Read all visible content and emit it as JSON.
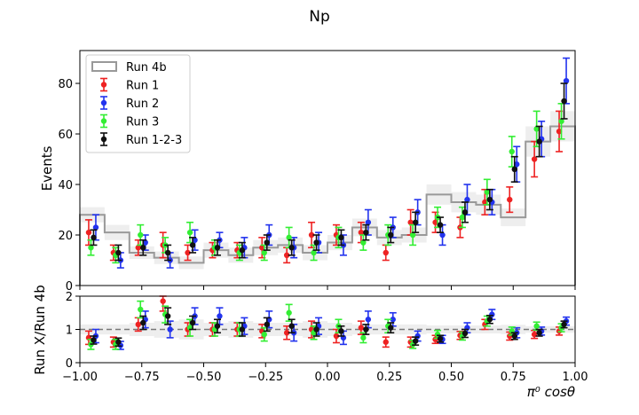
{
  "chart_data": [
    {
      "type": "line",
      "panel": "main",
      "title": "Np",
      "xlabel": "",
      "ylabel": "Events",
      "xlim": [
        -1.0,
        1.0
      ],
      "ylim": [
        0,
        93
      ],
      "x_ticks": [
        "−1.00",
        "−0.75",
        "−0.50",
        "−0.25",
        "0.00",
        "0.25",
        "0.50",
        "0.75",
        "1.00"
      ],
      "y_ticks": [
        "0",
        "20",
        "40",
        "60",
        "80"
      ],
      "legend": "top-left",
      "bin_centers": [
        -0.95,
        -0.85,
        -0.75,
        -0.65,
        -0.55,
        -0.45,
        -0.35,
        -0.25,
        -0.15,
        -0.05,
        0.05,
        0.15,
        0.25,
        0.35,
        0.45,
        0.55,
        0.65,
        0.75,
        0.85,
        0.95
      ],
      "reference": {
        "name": "Run 4b",
        "color": "#999999",
        "values": [
          28,
          21,
          13,
          11,
          9,
          14,
          12,
          15,
          16,
          13,
          17,
          23,
          19,
          20,
          36,
          33,
          32,
          27,
          57,
          63
        ],
        "band": [
          3,
          3,
          2.5,
          2.5,
          2.5,
          3,
          3,
          3,
          3,
          3,
          3,
          3.5,
          3,
          3,
          4,
          4,
          4,
          3.5,
          6,
          6
        ]
      },
      "series": [
        {
          "name": "Run 1",
          "color": "#ee2222",
          "values": [
            21,
            13,
            15,
            16,
            13,
            14,
            14,
            15,
            12,
            20,
            20,
            21,
            13,
            25,
            25,
            23,
            33,
            34,
            50,
            61
          ],
          "errors": [
            5,
            3,
            3,
            5,
            3,
            3,
            3,
            4,
            3,
            5,
            4,
            4,
            3,
            5,
            4,
            4,
            5,
            5,
            7,
            8
          ]
        },
        {
          "name": "Run 2",
          "color": "#2233ee",
          "values": [
            23,
            10,
            17,
            10,
            18,
            18,
            15,
            20,
            15,
            17,
            16,
            25,
            23,
            29,
            20,
            34,
            33,
            48,
            58,
            81
          ],
          "errors": [
            5,
            3,
            3,
            3,
            4,
            3,
            4,
            4,
            4,
            4,
            4,
            5,
            4,
            5,
            4,
            6,
            5,
            7,
            7,
            9
          ]
        },
        {
          "name": "Run 3",
          "color": "#33ee33",
          "values": [
            15,
            12,
            20,
            16,
            21,
            15,
            13,
            13,
            19,
            13,
            19,
            17,
            20,
            20,
            27,
            27,
            37,
            53,
            62,
            65
          ],
          "errors": [
            3,
            3,
            4,
            3,
            4,
            3,
            3,
            3,
            4,
            3,
            4,
            3,
            4,
            4,
            4,
            4,
            5,
            6,
            7,
            7
          ]
        },
        {
          "name": "Run 1-2-3",
          "color": "#111111",
          "values": [
            19,
            13,
            15,
            13,
            16,
            15,
            14,
            17,
            15,
            17,
            19,
            21,
            20,
            25,
            24,
            29,
            34,
            46,
            57,
            73
          ],
          "errors": [
            3,
            3,
            3,
            3,
            3,
            3,
            3,
            3,
            3,
            3,
            3,
            3,
            3,
            4,
            3,
            4,
            4,
            5,
            6,
            7
          ]
        }
      ]
    },
    {
      "type": "line",
      "panel": "ratio",
      "xlabel": "π⁰ cosθ",
      "ylabel": "Run X/Run 4b",
      "xlim": [
        -1.0,
        1.0
      ],
      "ylim": [
        0,
        2
      ],
      "x_ticks": [
        "−1.00",
        "−0.75",
        "−0.50",
        "−0.25",
        "0.00",
        "0.25",
        "0.50",
        "0.75",
        "1.00"
      ],
      "y_ticks": [
        "0",
        "1",
        "2"
      ],
      "reference_line": 1,
      "band": [
        0.15,
        0.15,
        0.2,
        0.25,
        0.3,
        0.2,
        0.25,
        0.2,
        0.2,
        0.25,
        0.2,
        0.15,
        0.15,
        0.15,
        0.12,
        0.12,
        0.12,
        0.14,
        0.1,
        0.1
      ],
      "series": [
        {
          "name": "Run 1",
          "color": "#ee2222",
          "values": [
            0.75,
            0.62,
            1.15,
            1.85,
            1.0,
            1.0,
            1.0,
            0.95,
            0.9,
            1.0,
            0.8,
            1.05,
            0.62,
            0.62,
            0.7,
            0.82,
            1.15,
            0.8,
            0.85,
            0.95
          ],
          "errors": [
            0.2,
            0.15,
            0.2,
            0.3,
            0.2,
            0.2,
            0.2,
            0.2,
            0.2,
            0.25,
            0.2,
            0.2,
            0.15,
            0.15,
            0.12,
            0.12,
            0.15,
            0.12,
            0.12,
            0.12
          ]
        },
        {
          "name": "Run 2",
          "color": "#2233ee",
          "values": [
            0.8,
            0.52,
            1.3,
            1.0,
            1.4,
            1.4,
            1.1,
            1.3,
            0.9,
            1.1,
            0.75,
            1.3,
            1.3,
            0.8,
            0.7,
            1.05,
            1.45,
            0.9,
            0.95,
            1.25
          ],
          "errors": [
            0.2,
            0.12,
            0.25,
            0.25,
            0.25,
            0.25,
            0.25,
            0.25,
            0.25,
            0.25,
            0.2,
            0.25,
            0.2,
            0.15,
            0.12,
            0.15,
            0.15,
            0.15,
            0.12,
            0.12
          ]
        },
        {
          "name": "Run 3",
          "color": "#33ee33",
          "values": [
            0.55,
            0.55,
            1.6,
            1.45,
            1.05,
            1.0,
            1.0,
            0.85,
            1.5,
            0.9,
            1.1,
            0.75,
            1.1,
            0.55,
            0.85,
            0.8,
            1.25,
            0.95,
            1.1,
            1.05
          ],
          "errors": [
            0.15,
            0.15,
            0.25,
            0.25,
            0.25,
            0.2,
            0.2,
            0.2,
            0.25,
            0.2,
            0.2,
            0.15,
            0.2,
            0.12,
            0.12,
            0.12,
            0.15,
            0.12,
            0.12,
            0.12
          ]
        },
        {
          "name": "Run 1-2-3",
          "color": "#111111",
          "values": [
            0.68,
            0.62,
            1.2,
            1.4,
            1.2,
            1.1,
            1.0,
            1.15,
            1.1,
            1.0,
            0.95,
            1.0,
            1.05,
            0.65,
            0.72,
            0.88,
            1.3,
            0.8,
            0.9,
            1.15
          ],
          "errors": [
            0.12,
            0.12,
            0.2,
            0.25,
            0.2,
            0.2,
            0.2,
            0.2,
            0.2,
            0.2,
            0.15,
            0.15,
            0.15,
            0.12,
            0.1,
            0.12,
            0.12,
            0.1,
            0.1,
            0.1
          ]
        }
      ]
    }
  ]
}
